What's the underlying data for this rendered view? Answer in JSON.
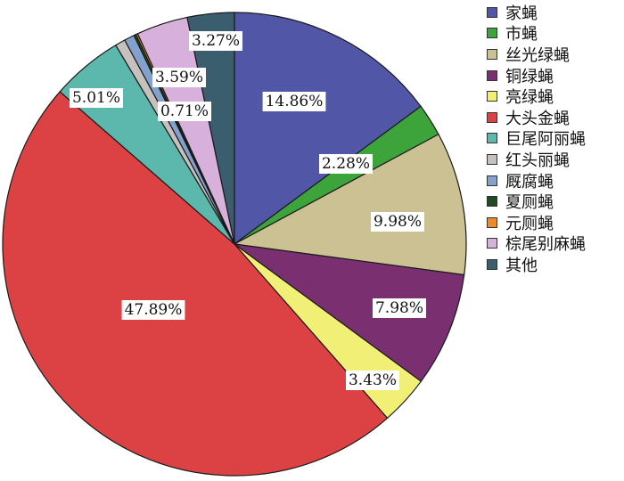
{
  "chart_data": {
    "type": "pie",
    "title": "",
    "slices": [
      {
        "name": "家蝇",
        "value": 14.86,
        "label": "14.86%",
        "color": "#5156a6"
      },
      {
        "name": "市蝇",
        "value": 2.28,
        "label": "2.28%",
        "color": "#3ca43b"
      },
      {
        "name": "丝光绿蝇",
        "value": 9.98,
        "label": "9.98%",
        "color": "#cbc193"
      },
      {
        "name": "铜绿蝇",
        "value": 7.98,
        "label": "7.98%",
        "color": "#7a3070"
      },
      {
        "name": "亮绿蝇",
        "value": 3.43,
        "label": "3.43%",
        "color": "#f2ef77"
      },
      {
        "name": "大头金蝇",
        "value": 47.89,
        "label": "47.89%",
        "color": "#dc4244"
      },
      {
        "name": "巨尾阿丽蝇",
        "value": 5.01,
        "label": "5.01%",
        "color": "#5cb7ad"
      },
      {
        "name": "红头丽蝇",
        "value": 0.71,
        "label": "0.71%",
        "color": "#c7c1bd"
      },
      {
        "name": "厩腐蝇",
        "value": 0.71,
        "label": "",
        "color": "#82a2cd"
      },
      {
        "name": "夏厕蝇",
        "value": 0.15,
        "label": "",
        "color": "#204a20"
      },
      {
        "name": "元厕蝇",
        "value": 0.13,
        "label": "",
        "color": "#ee8a2a"
      },
      {
        "name": "棕尾别麻蝇",
        "value": 3.59,
        "label": "3.59%",
        "color": "#d8b0dc"
      },
      {
        "name": "其他",
        "value": 3.27,
        "label": "3.27%",
        "color": "#3b5e6e"
      }
    ],
    "legend_position": "right"
  }
}
